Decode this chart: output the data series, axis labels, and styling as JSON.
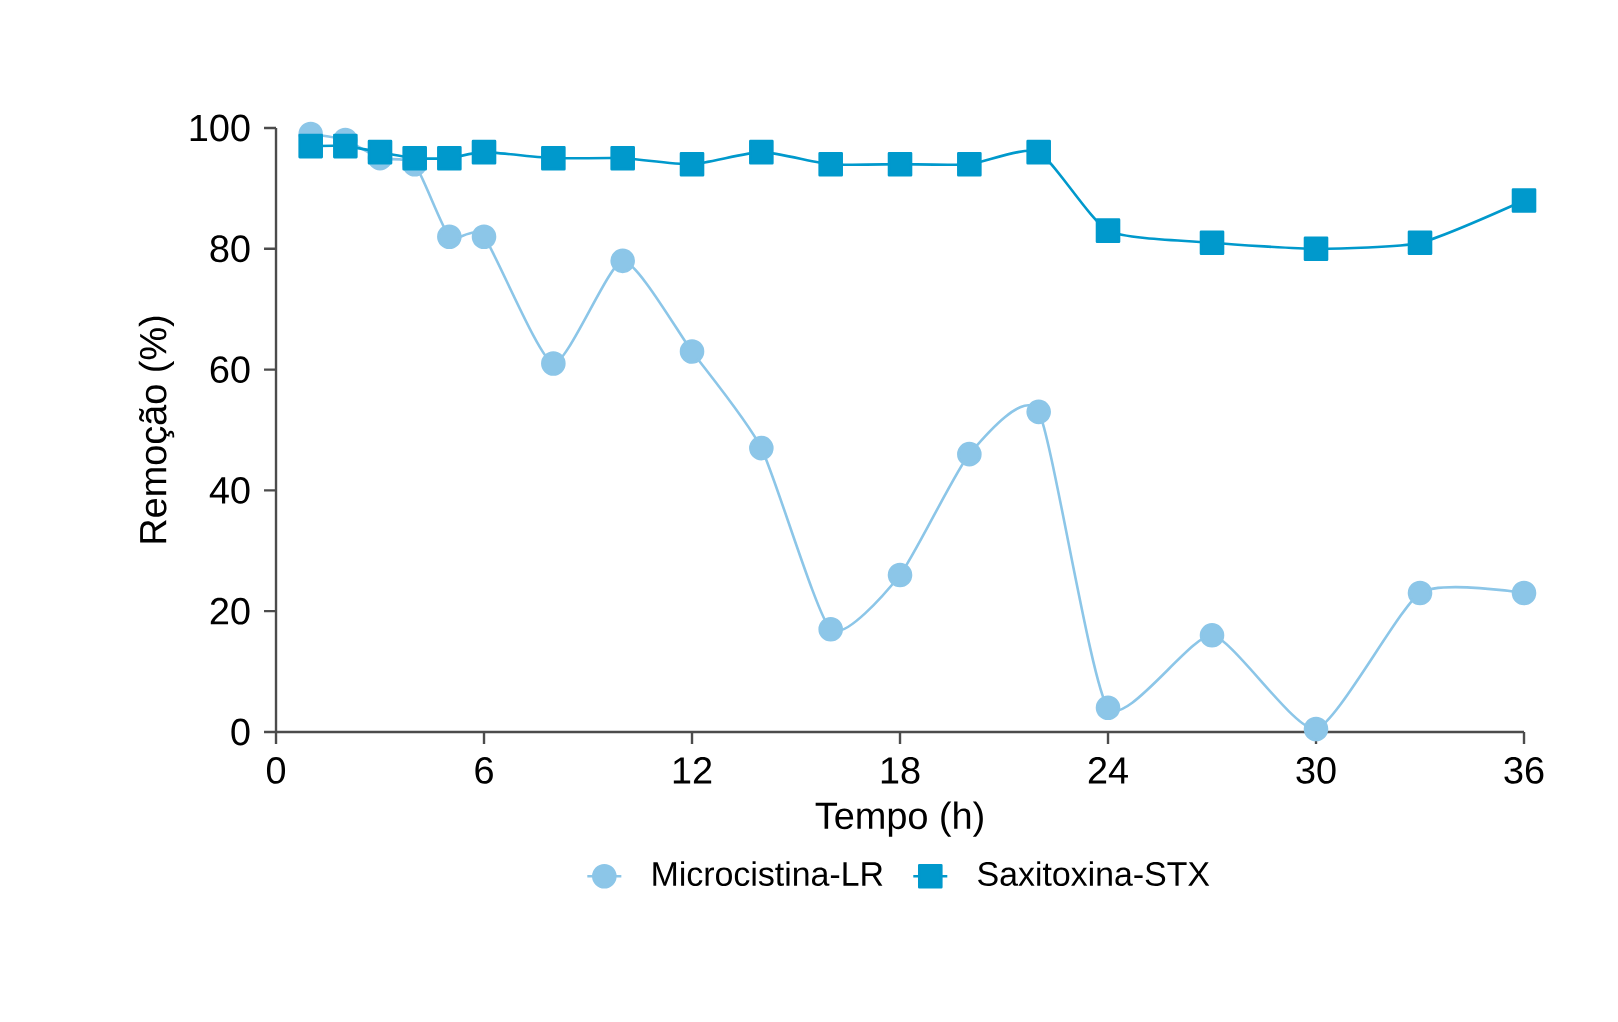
{
  "chart_data": {
    "type": "line",
    "xlabel": "Tempo (h)",
    "ylabel": "Remoção (%)",
    "x": [
      1,
      2,
      3,
      4,
      5,
      6,
      8,
      10,
      12,
      14,
      16,
      18,
      20,
      22,
      24,
      27,
      30,
      33,
      36
    ],
    "series": [
      {
        "name": "Microcistina-LR",
        "color": "#8cc6e8",
        "marker": "circle",
        "values": [
          99,
          98,
          95,
          94,
          82,
          82,
          61,
          78,
          63,
          47,
          17,
          26,
          46,
          53,
          4,
          16,
          0.5,
          23,
          23
        ]
      },
      {
        "name": "Saxitoxina-STX",
        "color": "#0099cc",
        "marker": "square",
        "values": [
          97,
          97,
          96,
          95,
          95,
          96,
          95,
          95,
          94,
          96,
          94,
          94,
          94,
          96,
          83,
          81,
          80,
          81,
          88
        ]
      }
    ],
    "xlim": [
      0,
      36
    ],
    "ylim": [
      0,
      100
    ],
    "xticks": [
      0,
      6,
      12,
      18,
      24,
      30,
      36
    ],
    "yticks": [
      0,
      20,
      40,
      60,
      80,
      100
    ],
    "legend": "bottom",
    "line_style": "solid",
    "grid": false
  }
}
